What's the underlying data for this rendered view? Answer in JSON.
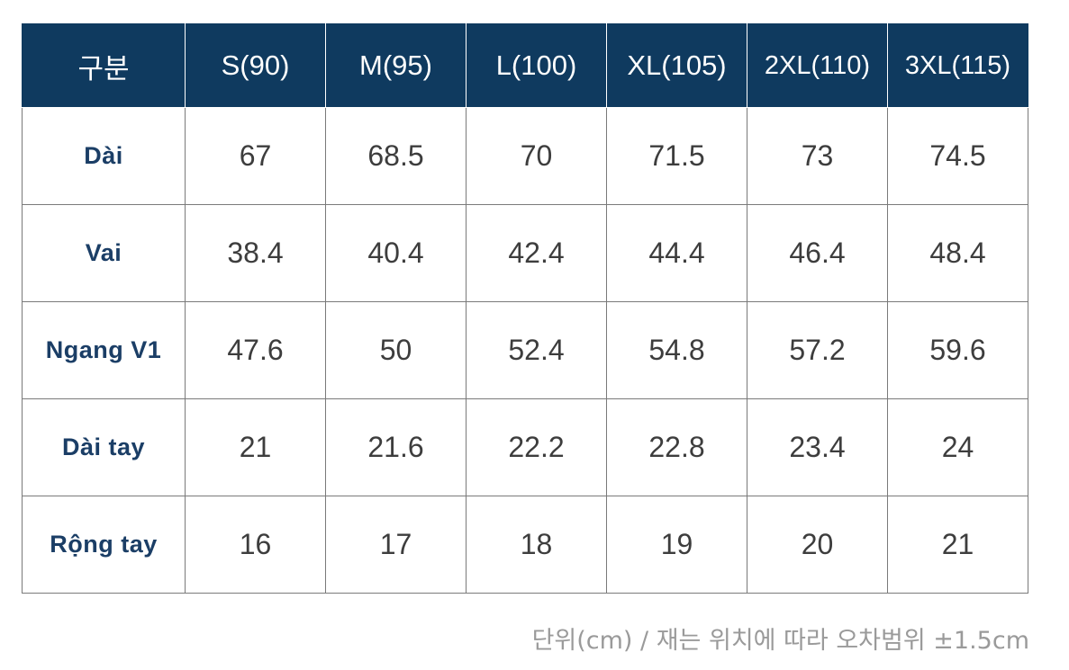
{
  "table": {
    "corner_header": "구분",
    "sizes": [
      "S(90)",
      "M(95)",
      "L(100)",
      "XL(105)",
      "2XL(110)",
      "3XL(115)"
    ],
    "rows": [
      {
        "label": "Dài",
        "values": [
          "67",
          "68.5",
          "70",
          "71.5",
          "73",
          "74.5"
        ]
      },
      {
        "label": "Vai",
        "values": [
          "38.4",
          "40.4",
          "42.4",
          "44.4",
          "46.4",
          "48.4"
        ]
      },
      {
        "label": "Ngang V1",
        "values": [
          "47.6",
          "50",
          "52.4",
          "54.8",
          "57.2",
          "59.6"
        ]
      },
      {
        "label": "Dài tay",
        "values": [
          "21",
          "21.6",
          "22.2",
          "22.8",
          "23.4",
          "24"
        ]
      },
      {
        "label": "Rộng tay",
        "values": [
          "16",
          "17",
          "18",
          "19",
          "20",
          "21"
        ]
      }
    ]
  },
  "footnote": "단위(cm) / 재는 위치에 따라 오차범위 ±1.5cm",
  "colors": {
    "header_background": "#0f3a5f",
    "header_text": "#ffffff",
    "row_label_text": "#1b3e66",
    "cell_text": "#3d3d3d",
    "grid_line": "#7a7a7a",
    "footnote_text": "#9a9a9a"
  }
}
